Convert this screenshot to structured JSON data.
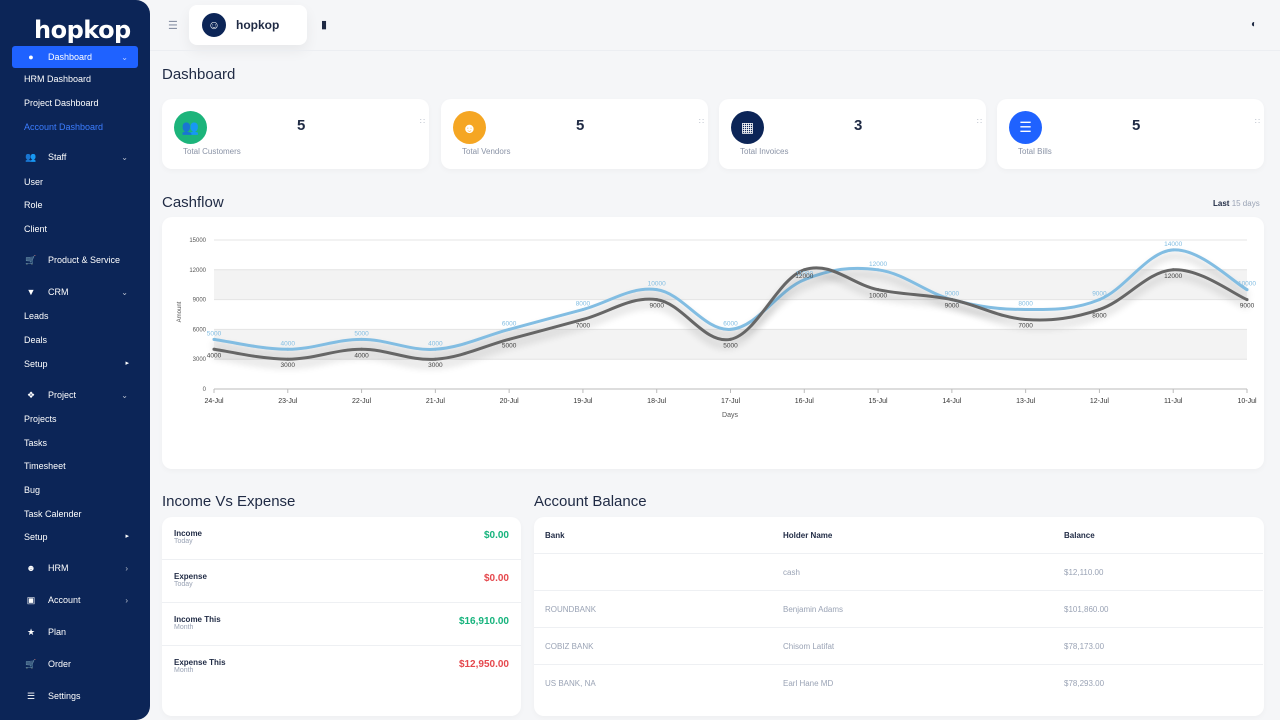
{
  "app": {
    "logo": "hopkop"
  },
  "sidebar": {
    "dashboard": "Dashboard",
    "dashboard_subs": [
      "HRM Dashboard",
      "Project Dashboard",
      "Account Dashboard"
    ],
    "staff": "Staff",
    "staff_subs": [
      "User",
      "Role",
      "Client"
    ],
    "product_service": "Product & Service",
    "crm": "CRM",
    "crm_subs": [
      "Leads",
      "Deals",
      "Setup"
    ],
    "project": "Project",
    "project_subs": [
      "Projects",
      "Tasks",
      "Timesheet",
      "Bug",
      "Task Calender",
      "Setup"
    ],
    "hrm": "HRM",
    "account": "Account",
    "plan": "Plan",
    "order": "Order",
    "settings": "Settings"
  },
  "topbar": {
    "user_name": "hopkop"
  },
  "page": {
    "title": "Dashboard"
  },
  "stats": [
    {
      "value": "5",
      "label": "Total Customers",
      "icon": "users-icon",
      "color": "#1cb47b"
    },
    {
      "value": "5",
      "label": "Total Vendors",
      "icon": "user-icon",
      "color": "#f5a623"
    },
    {
      "value": "3",
      "label": "Total Invoices",
      "icon": "money-icon",
      "color": "#0c2557"
    },
    {
      "value": "5",
      "label": "Total Bills",
      "icon": "database-icon",
      "color": "#1f62ff"
    }
  ],
  "cashflow": {
    "title": "Cashflow",
    "last_label": "Last",
    "days_label": "15 days"
  },
  "chart_data": {
    "type": "line",
    "categories": [
      "24-Jul",
      "23-Jul",
      "22-Jul",
      "21-Jul",
      "20-Jul",
      "19-Jul",
      "18-Jul",
      "17-Jul",
      "16-Jul",
      "15-Jul",
      "14-Jul",
      "13-Jul",
      "12-Jul",
      "11-Jul",
      "10-Jul"
    ],
    "series": [
      {
        "name": "",
        "color": "#82bde2",
        "values": [
          5000,
          4000,
          5000,
          4000,
          6000,
          8000,
          10000,
          6000,
          11000,
          12000,
          9000,
          8000,
          9000,
          14000,
          10000
        ]
      },
      {
        "name": "",
        "color": "#666666",
        "values": [
          4000,
          3000,
          4000,
          3000,
          5000,
          7000,
          9000,
          5000,
          12000,
          10000,
          9000,
          7000,
          8000,
          12000,
          9000
        ]
      }
    ],
    "xlabel": "Days",
    "ylabel": "Amount",
    "ylim": [
      0,
      15000
    ],
    "yticks": [
      0,
      3000,
      6000,
      9000,
      12000,
      15000
    ],
    "grid": true
  },
  "income": {
    "title": "Income Vs Expense",
    "rows": [
      {
        "label": "Income",
        "sub": "Today",
        "amount": "$0.00",
        "tone": "green"
      },
      {
        "label": "Expense",
        "sub": "Today",
        "amount": "$0.00",
        "tone": "red"
      },
      {
        "label": "Income This",
        "sub": "Month",
        "amount": "$16,910.00",
        "tone": "green"
      },
      {
        "label": "Expense This",
        "sub": "Month",
        "amount": "$12,950.00",
        "tone": "red"
      }
    ]
  },
  "accounts": {
    "title": "Account Balance",
    "headers": [
      "Bank",
      "Holder Name",
      "Balance"
    ],
    "rows": [
      {
        "bank": "",
        "holder": "cash",
        "balance": "$12,110.00"
      },
      {
        "bank": "ROUNDBANK",
        "holder": "Benjamin Adams",
        "balance": "$101,860.00"
      },
      {
        "bank": "COBIZ BANK",
        "holder": "Chisom Latifat",
        "balance": "$78,173.00"
      },
      {
        "bank": "US BANK, NA",
        "holder": "Earl Hane MD",
        "balance": "$78,293.00"
      }
    ]
  }
}
